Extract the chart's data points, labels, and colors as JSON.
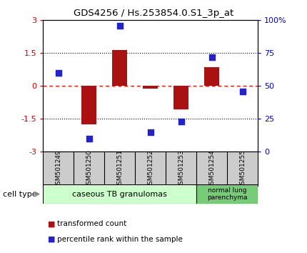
{
  "title": "GDS4256 / Hs.253854.0.S1_3p_at",
  "samples": [
    "GSM501249",
    "GSM501250",
    "GSM501251",
    "GSM501252",
    "GSM501253",
    "GSM501254",
    "GSM501255"
  ],
  "transformed_counts": [
    0.02,
    -1.75,
    1.65,
    -0.12,
    -1.05,
    0.85,
    0.02
  ],
  "percentile_ranks": [
    60,
    10,
    96,
    15,
    23,
    72,
    46
  ],
  "ylim_left": [
    -3,
    3
  ],
  "ylim_right": [
    0,
    100
  ],
  "yticks_left": [
    -3,
    -1.5,
    0,
    1.5,
    3
  ],
  "yticks_right": [
    0,
    25,
    50,
    75,
    100
  ],
  "ytick_labels_left": [
    "-3",
    "-1.5",
    "0",
    "1.5",
    "3"
  ],
  "ytick_labels_right": [
    "0",
    "25",
    "50",
    "75",
    "100%"
  ],
  "hlines": [
    -1.5,
    0.0,
    1.5
  ],
  "hline_styles": [
    "dotted",
    "dashed_red",
    "dotted"
  ],
  "bar_color": "#aa1111",
  "dot_color": "#2222cc",
  "bar_width": 0.5,
  "dot_size": 40,
  "group1_count": 5,
  "group2_count": 2,
  "group1_label": "caseous TB granulomas",
  "group2_label": "normal lung\nparenchyma",
  "group1_color": "#ccffcc",
  "group2_color": "#77cc77",
  "cell_type_label": "cell type",
  "legend_bar_label": "transformed count",
  "legend_dot_label": "percentile rank within the sample",
  "bg_color": "#ffffff",
  "tick_label_color_left": "#cc0000",
  "tick_label_color_right": "#0000cc",
  "sample_box_color": "#cccccc",
  "figsize": [
    4.3,
    3.54
  ],
  "dpi": 100
}
